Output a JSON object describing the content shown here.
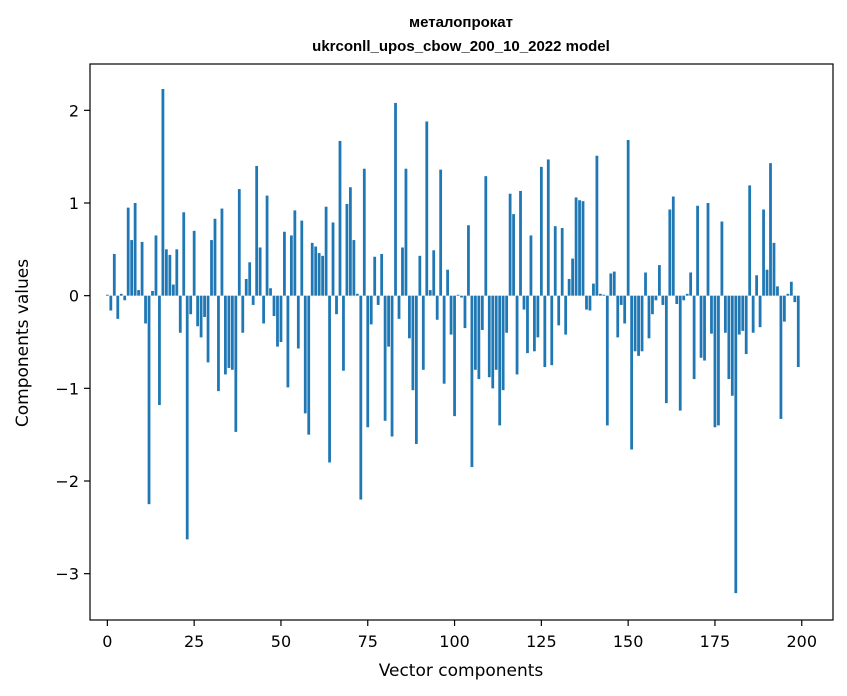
{
  "chart_data": {
    "type": "bar",
    "title": "металопрокат",
    "subtitle": "ukrconll_upos_cbow_200_10_2022 model",
    "xlabel": "Vector components",
    "ylabel": "Components values",
    "xlim": [
      -5,
      209
    ],
    "ylim": [
      -3.5,
      2.5
    ],
    "xticks": [
      0,
      25,
      50,
      75,
      100,
      125,
      150,
      175,
      200
    ],
    "yticks": [
      -3,
      -2,
      -1,
      0,
      1,
      2
    ],
    "ytick_labels": [
      "−3",
      "−2",
      "−1",
      "0",
      "1",
      "2"
    ],
    "bar_color": "#1f77b4",
    "grid": false,
    "x": [
      0,
      1,
      2,
      3,
      4,
      5,
      6,
      7,
      8,
      9,
      10,
      11,
      12,
      13,
      14,
      15,
      16,
      17,
      18,
      19,
      20,
      21,
      22,
      23,
      24,
      25,
      26,
      27,
      28,
      29,
      30,
      31,
      32,
      33,
      34,
      35,
      36,
      37,
      38,
      39,
      40,
      41,
      42,
      43,
      44,
      45,
      46,
      47,
      48,
      49,
      50,
      51,
      52,
      53,
      54,
      55,
      56,
      57,
      58,
      59,
      60,
      61,
      62,
      63,
      64,
      65,
      66,
      67,
      68,
      69,
      70,
      71,
      72,
      73,
      74,
      75,
      76,
      77,
      78,
      79,
      80,
      81,
      82,
      83,
      84,
      85,
      86,
      87,
      88,
      89,
      90,
      91,
      92,
      93,
      94,
      95,
      96,
      97,
      98,
      99,
      100,
      101,
      102,
      103,
      104,
      105,
      106,
      107,
      108,
      109,
      110,
      111,
      112,
      113,
      114,
      115,
      116,
      117,
      118,
      119,
      120,
      121,
      122,
      123,
      124,
      125,
      126,
      127,
      128,
      129,
      130,
      131,
      132,
      133,
      134,
      135,
      136,
      137,
      138,
      139,
      140,
      141,
      142,
      143,
      144,
      145,
      146,
      147,
      148,
      149,
      150,
      151,
      152,
      153,
      154,
      155,
      156,
      157,
      158,
      159,
      160,
      161,
      162,
      163,
      164,
      165,
      166,
      167,
      168,
      169,
      170,
      171,
      172,
      173,
      174,
      175,
      176,
      177,
      178,
      179,
      180,
      181,
      182,
      183,
      184,
      185,
      186,
      187,
      188,
      189,
      190,
      191,
      192,
      193,
      194,
      195,
      196,
      197,
      198,
      199
    ],
    "values": [
      0.01,
      -0.16,
      0.45,
      -0.25,
      0.02,
      -0.05,
      0.95,
      0.6,
      1.0,
      0.06,
      0.58,
      -0.3,
      -2.25,
      0.05,
      0.65,
      -1.18,
      2.23,
      0.5,
      0.44,
      0.12,
      0.5,
      -0.4,
      0.9,
      -2.63,
      -0.2,
      0.7,
      -0.33,
      -0.45,
      -0.23,
      -0.72,
      0.6,
      0.83,
      -1.03,
      0.94,
      -0.85,
      -0.78,
      -0.8,
      -1.47,
      1.15,
      -0.4,
      0.18,
      0.36,
      -0.1,
      1.4,
      0.52,
      -0.3,
      1.08,
      0.08,
      -0.22,
      -0.55,
      -0.5,
      0.69,
      -0.99,
      0.65,
      0.92,
      -0.57,
      0.81,
      -1.27,
      -1.5,
      0.57,
      0.53,
      0.46,
      0.43,
      0.96,
      -1.8,
      0.79,
      -0.2,
      1.67,
      -0.81,
      0.99,
      1.17,
      0.6,
      0.02,
      -2.2,
      1.37,
      -1.42,
      -0.31,
      0.42,
      -0.1,
      0.45,
      -1.35,
      -0.55,
      -1.52,
      2.08,
      -0.25,
      0.52,
      1.37,
      -0.46,
      -1.02,
      -1.6,
      0.43,
      -0.8,
      1.88,
      0.06,
      0.49,
      -0.26,
      1.36,
      -0.95,
      0.28,
      -0.42,
      -1.3,
      0.01,
      -0.02,
      -0.35,
      0.76,
      -1.85,
      -0.8,
      -0.9,
      -0.37,
      1.29,
      -0.88,
      -1.0,
      -0.8,
      -1.4,
      -1.02,
      -0.4,
      1.1,
      0.88,
      -0.85,
      1.13,
      -0.15,
      -0.62,
      0.65,
      -0.6,
      -0.45,
      1.39,
      -0.77,
      1.47,
      -0.75,
      0.75,
      -0.32,
      0.73,
      -0.42,
      0.18,
      0.4,
      1.06,
      1.03,
      1.02,
      -0.15,
      -0.16,
      0.13,
      1.51,
      0.02,
      0.01,
      -1.4,
      0.24,
      0.26,
      -0.45,
      -0.1,
      -0.3,
      1.68,
      -1.66,
      -0.6,
      -0.65,
      -0.6,
      0.25,
      -0.46,
      -0.2,
      -0.05,
      0.33,
      -0.1,
      -1.16,
      0.93,
      1.07,
      -0.09,
      -1.24,
      -0.05,
      0.02,
      0.25,
      -0.9,
      0.97,
      -0.67,
      -0.7,
      1.0,
      -0.41,
      -1.42,
      -1.4,
      0.8,
      -0.4,
      -0.9,
      -1.08,
      -3.21,
      -0.42,
      -0.38,
      -0.63,
      1.19,
      -0.4,
      0.22,
      -0.34,
      0.93,
      0.28,
      1.43,
      0.57,
      0.1,
      -1.33,
      -0.28,
      0.02,
      0.15,
      -0.07,
      -0.77
    ]
  }
}
